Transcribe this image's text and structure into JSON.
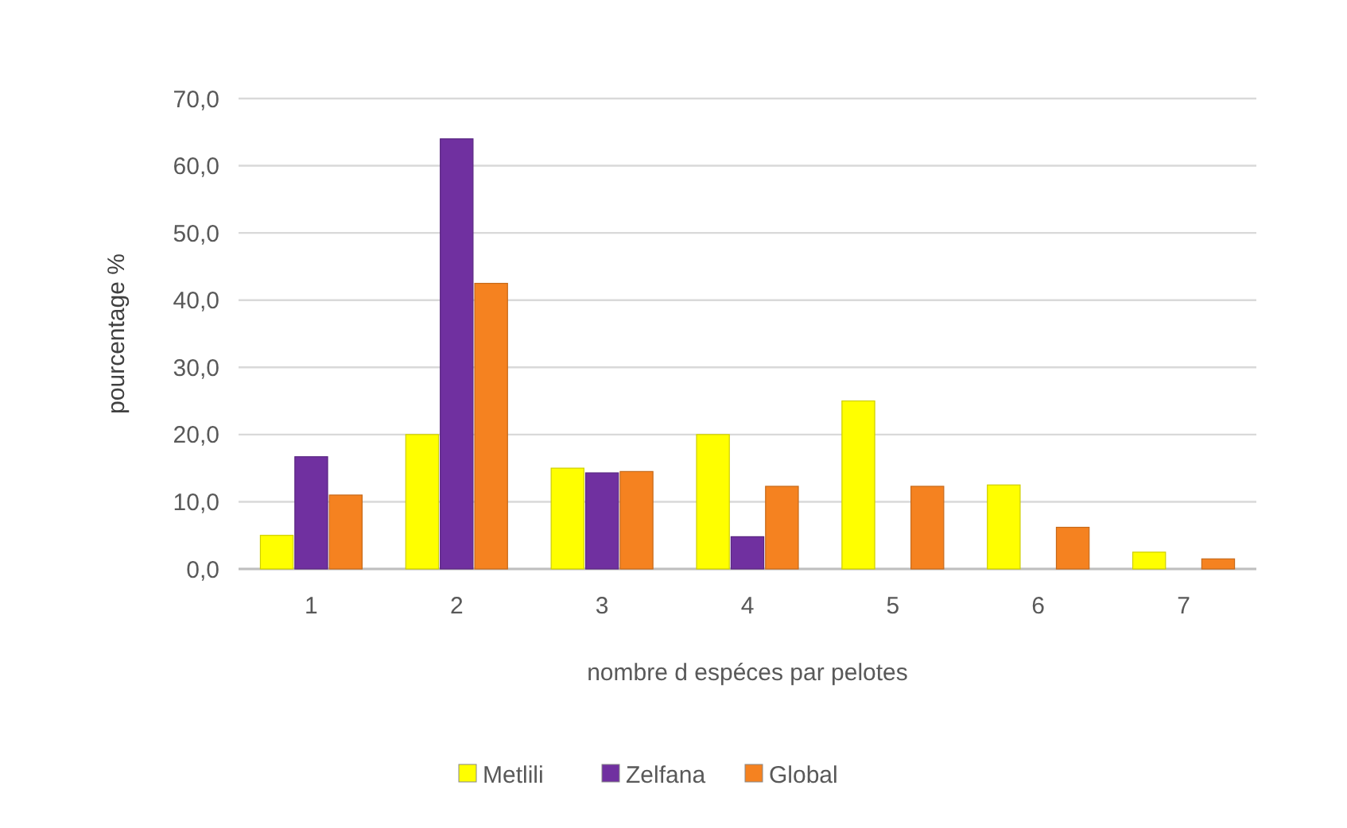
{
  "chart_data": {
    "type": "bar",
    "xlabel": "nombre d espéces par pelotes",
    "ylabel": "pourcentage %",
    "categories": [
      "1",
      "2",
      "3",
      "4",
      "5",
      "6",
      "7"
    ],
    "series": [
      {
        "name": "Metlili",
        "color": "#ffff00",
        "values": [
          5,
          20,
          15,
          20,
          25,
          12.5,
          2.5
        ]
      },
      {
        "name": "Zelfana",
        "color": "#7030a0",
        "values": [
          16.7,
          64,
          14.3,
          4.8,
          0,
          0,
          0
        ]
      },
      {
        "name": "Global",
        "color": "#f58220",
        "values": [
          11,
          42.5,
          14.5,
          12.3,
          12.3,
          6.2,
          1.5
        ]
      }
    ],
    "ylim": [
      0,
      70
    ],
    "yticks": [
      {
        "value": 0,
        "label": "0,0"
      },
      {
        "value": 10,
        "label": "10,0"
      },
      {
        "value": 20,
        "label": "20,0"
      },
      {
        "value": 30,
        "label": "30,0"
      },
      {
        "value": 40,
        "label": "40,0"
      },
      {
        "value": 50,
        "label": "50,0"
      },
      {
        "value": 60,
        "label": "60,0"
      },
      {
        "value": 70,
        "label": "70,0"
      }
    ],
    "grid": "y",
    "legend": "bottom"
  }
}
